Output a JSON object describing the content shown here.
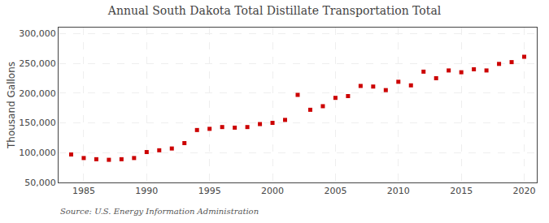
{
  "chart_data": {
    "type": "scatter",
    "title": "Annual South Dakota Total Distillate Transportation Total",
    "ylabel": "Thousand Gallons",
    "annotations": [
      "Source: U.S. Energy Information Administration"
    ],
    "x": [
      1984,
      1985,
      1986,
      1987,
      1988,
      1989,
      1990,
      1991,
      1992,
      1993,
      1994,
      1995,
      1996,
      1997,
      1998,
      1999,
      2000,
      2001,
      2002,
      2003,
      2004,
      2005,
      2006,
      2007,
      2008,
      2009,
      2010,
      2011,
      2012,
      2013,
      2014,
      2015,
      2016,
      2017,
      2018,
      2019,
      2020
    ],
    "values": [
      97000,
      91000,
      89000,
      88000,
      89000,
      91000,
      101000,
      104000,
      107000,
      116000,
      138000,
      140000,
      143000,
      142000,
      143000,
      148000,
      150000,
      155000,
      197000,
      172000,
      178000,
      192000,
      195000,
      212000,
      211000,
      205000,
      219000,
      213000,
      236000,
      225000,
      238000,
      235000,
      240000,
      238000,
      249000,
      252000,
      261000
    ],
    "color": "#cc0000",
    "marker": "square",
    "xlim": [
      1983,
      2021
    ],
    "ylim": [
      50000,
      310000
    ],
    "xticks": [
      1985,
      1990,
      1995,
      2000,
      2005,
      2010,
      2015,
      2020
    ],
    "yticks": [
      {
        "value": 50000,
        "label": "50,000"
      },
      {
        "value": 100000,
        "label": "100,000"
      },
      {
        "value": 150000,
        "label": "150,000"
      },
      {
        "value": 200000,
        "label": "200,000"
      },
      {
        "value": 250000,
        "label": "250,000"
      },
      {
        "value": 300000,
        "label": "300,000"
      }
    ],
    "grid": true
  }
}
